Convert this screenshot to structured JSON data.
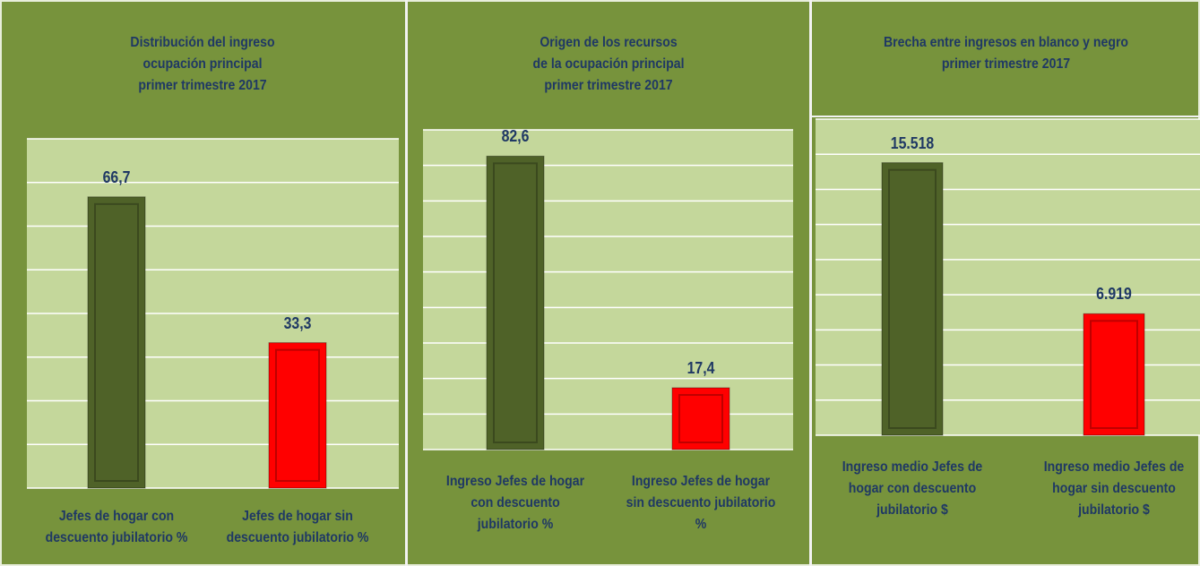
{
  "chart_data": [
    {
      "type": "bar",
      "title": "Distribución del ingreso\nocupación principal\nprimer trimestre 2017",
      "categories": [
        "Jefes de hogar con\ndescuento jubilatorio %",
        "Jefes de hogar sin\ndescuento jubilatorio %"
      ],
      "values": [
        66.7,
        33.3
      ],
      "value_labels": [
        "66,7",
        "33,3"
      ],
      "colors": [
        "#4f6228",
        "#ff0000"
      ],
      "ylim": [
        0,
        80
      ],
      "yticks": [
        0,
        10,
        20,
        30,
        40,
        50,
        60,
        70,
        80
      ],
      "grid": true
    },
    {
      "type": "bar",
      "title": "Origen de los recursos\nde la ocupación principal\nprimer trimestre 2017",
      "categories": [
        "Ingreso Jefes de hogar\ncon descuento\njubilatorio %",
        "Ingreso Jefes de hogar\nsin descuento jubilatorio\n%"
      ],
      "values": [
        82.6,
        17.4
      ],
      "value_labels": [
        "82,6",
        "17,4"
      ],
      "colors": [
        "#4f6228",
        "#ff0000"
      ],
      "ylim": [
        0,
        90
      ],
      "yticks": [
        0,
        10,
        20,
        30,
        40,
        50,
        60,
        70,
        80,
        90
      ],
      "grid": true
    },
    {
      "type": "bar",
      "title": "Brecha entre ingresos en blanco y negro\nprimer trimestre 2017",
      "categories": [
        "Ingreso medio Jefes de\nhogar con descuento\njubilatorio $",
        "Ingreso medio Jefes de\nhogar sin descuento\njubilatorio $"
      ],
      "values": [
        15518,
        6919
      ],
      "value_labels": [
        "15.518",
        "6.919"
      ],
      "colors": [
        "#4f6228",
        "#ff0000"
      ],
      "ylim": [
        0,
        18000
      ],
      "yticks": [
        0,
        2000,
        4000,
        6000,
        8000,
        10000,
        12000,
        14000,
        16000,
        18000
      ],
      "grid": true
    }
  ]
}
